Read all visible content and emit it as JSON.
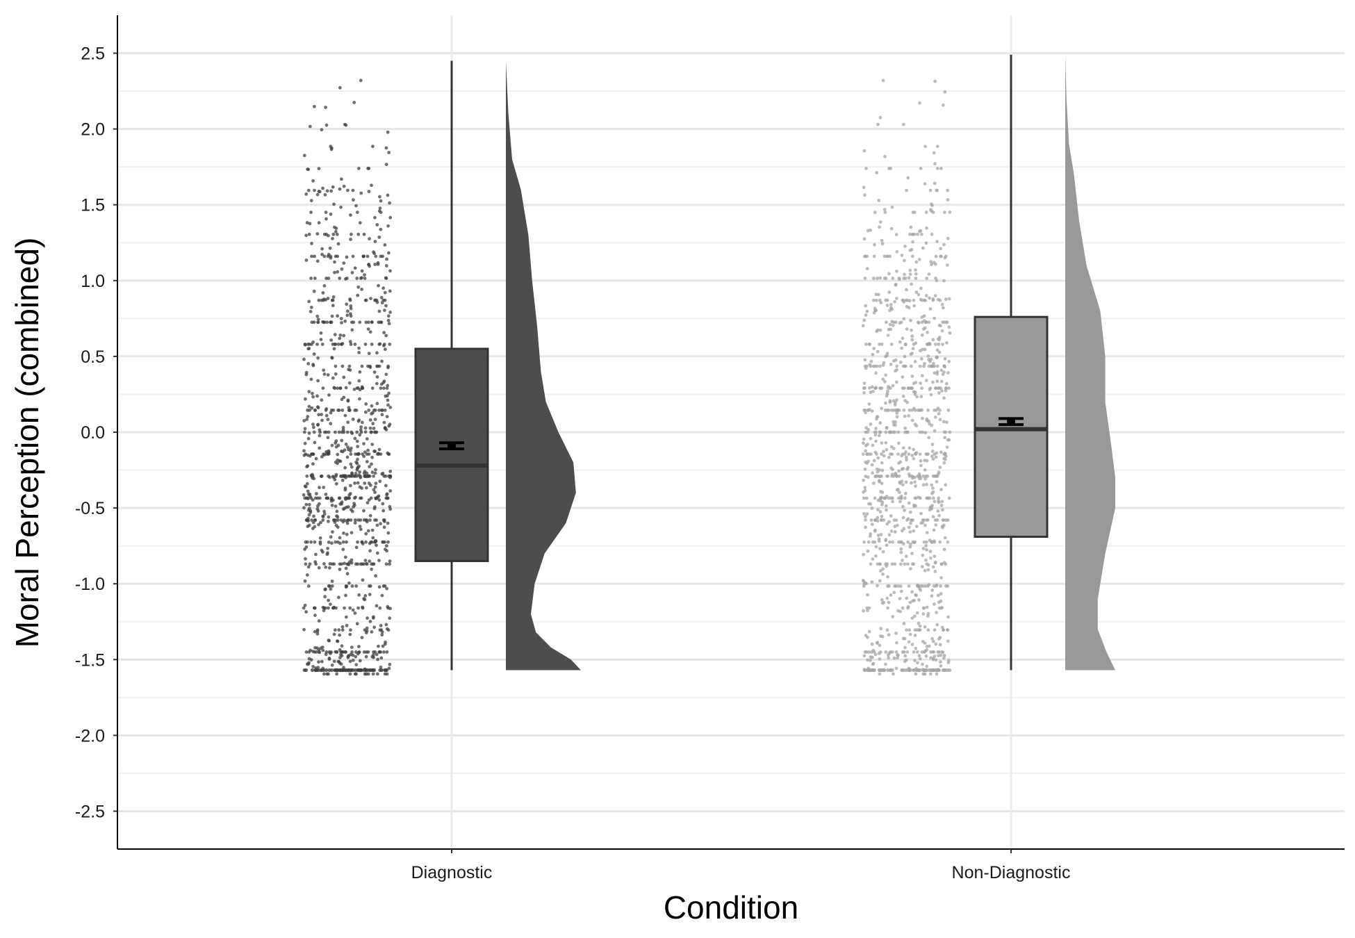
{
  "chart_data": {
    "type": "raincloud",
    "xlabel": "Condition",
    "ylabel": "Moral Perception (combined)",
    "ylim": [
      -2.75,
      2.75
    ],
    "y_ticks": [
      "2.5",
      "2.0",
      "1.5",
      "1.0",
      "0.5",
      "0.0",
      "-0.5",
      "-1.0",
      "-1.5",
      "-2.0",
      "-2.5"
    ],
    "y_tick_values": [
      2.5,
      2.0,
      1.5,
      1.0,
      0.5,
      0.0,
      -0.5,
      -1.0,
      -1.5,
      -2.0,
      -2.5
    ],
    "categories": [
      "Diagnostic",
      "Non-Diagnostic"
    ],
    "grid": true,
    "groups": [
      {
        "name": "Diagnostic",
        "color": "#4d4d4d",
        "point_color": "#404040",
        "whisker_low": -1.57,
        "q1": -0.85,
        "median": -0.22,
        "q3": 0.55,
        "whisker_high": 2.45,
        "mean": -0.09,
        "se": 0.02,
        "density": [
          [
            -1.57,
            0.6
          ],
          [
            -1.5,
            0.52
          ],
          [
            -1.42,
            0.36
          ],
          [
            -1.32,
            0.24
          ],
          [
            -1.2,
            0.2
          ],
          [
            -1.0,
            0.23
          ],
          [
            -0.8,
            0.31
          ],
          [
            -0.6,
            0.48
          ],
          [
            -0.4,
            0.56
          ],
          [
            -0.2,
            0.54
          ],
          [
            0.0,
            0.42
          ],
          [
            0.2,
            0.32
          ],
          [
            0.4,
            0.28
          ],
          [
            0.7,
            0.25
          ],
          [
            1.0,
            0.21
          ],
          [
            1.3,
            0.18
          ],
          [
            1.6,
            0.12
          ],
          [
            1.8,
            0.05
          ],
          [
            2.1,
            0.02
          ],
          [
            2.45,
            0.0
          ]
        ]
      },
      {
        "name": "Non-Diagnostic",
        "color": "#999999",
        "point_color": "#a6a6a6",
        "whisker_low": -1.57,
        "q1": -0.69,
        "median": 0.02,
        "q3": 0.76,
        "whisker_high": 2.49,
        "mean": 0.07,
        "se": 0.02,
        "density": [
          [
            -1.57,
            0.4
          ],
          [
            -1.45,
            0.33
          ],
          [
            -1.3,
            0.26
          ],
          [
            -1.1,
            0.26
          ],
          [
            -0.8,
            0.32
          ],
          [
            -0.5,
            0.4
          ],
          [
            -0.3,
            0.4
          ],
          [
            -0.1,
            0.37
          ],
          [
            0.2,
            0.32
          ],
          [
            0.5,
            0.32
          ],
          [
            0.8,
            0.28
          ],
          [
            1.1,
            0.17
          ],
          [
            1.4,
            0.11
          ],
          [
            1.7,
            0.07
          ],
          [
            1.9,
            0.03
          ],
          [
            2.2,
            0.01
          ],
          [
            2.49,
            0.0
          ]
        ]
      }
    ]
  }
}
